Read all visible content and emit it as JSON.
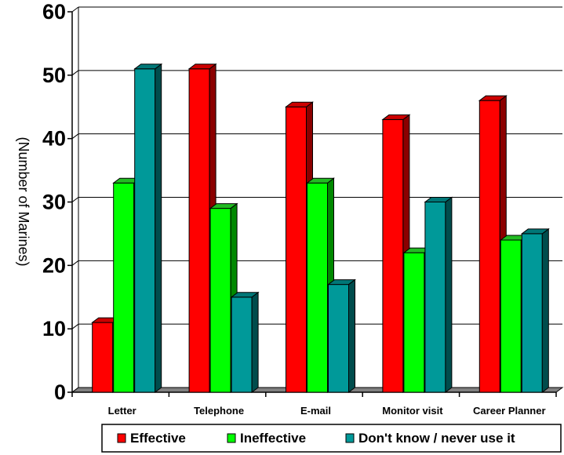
{
  "chart_data": {
    "type": "bar",
    "style": "3d-clustered",
    "categories": [
      "Letter",
      "Telephone",
      "E-mail",
      "Monitor visit",
      "Career  Planner"
    ],
    "series": [
      {
        "name": "Effective",
        "values": [
          11,
          51,
          45,
          43,
          46
        ],
        "color": "#ff0000",
        "side_color": "#8b0000",
        "top_color": "#cc0000"
      },
      {
        "name": "Ineffective",
        "values": [
          33,
          29,
          33,
          22,
          24
        ],
        "color": "#00ff00",
        "side_color": "#008800",
        "top_color": "#22bb22"
      },
      {
        "name": "Don't know / never use it",
        "values": [
          51,
          15,
          17,
          30,
          25
        ],
        "color": "#009999",
        "side_color": "#004c4c",
        "top_color": "#007777"
      }
    ],
    "ylabel": "(Number of Marines)",
    "xlabel": "",
    "ylim": [
      0,
      60
    ],
    "yticks": [
      0,
      10,
      20,
      30,
      40,
      50,
      60
    ],
    "grid": true,
    "legend_position": "bottom"
  }
}
